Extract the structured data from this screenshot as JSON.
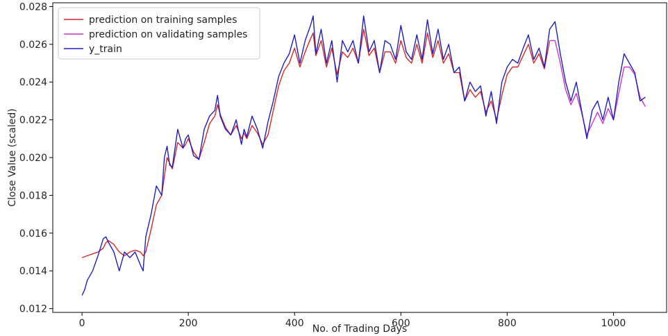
{
  "chart_data": {
    "type": "line",
    "xlabel": "No. of Trading Days",
    "ylabel": "Close Value (scaled)",
    "xlim": [
      -55,
      1100
    ],
    "ylim": [
      0.0118,
      0.0282
    ],
    "x_ticks": [
      0,
      200,
      400,
      600,
      800,
      1000
    ],
    "y_ticks": [
      0.012,
      0.014,
      0.016,
      0.018,
      0.02,
      0.022,
      0.024,
      0.026,
      0.028
    ],
    "legend_position": "top-left",
    "grid": false,
    "legend": [
      {
        "label": "prediction on training samples",
        "color": "#d62728"
      },
      {
        "label": "prediction on validating samples",
        "color": "#cc33cc"
      },
      {
        "label": "y_train",
        "color": "#1f1fbf"
      }
    ],
    "series": [
      {
        "name": "y_train",
        "color": "#1f1fbf",
        "x": [
          0,
          5,
          10,
          20,
          30,
          40,
          45,
          50,
          60,
          70,
          80,
          90,
          100,
          110,
          115,
          120,
          130,
          140,
          150,
          155,
          160,
          165,
          170,
          180,
          190,
          195,
          200,
          210,
          220,
          230,
          240,
          250,
          255,
          260,
          270,
          280,
          290,
          300,
          305,
          310,
          320,
          330,
          340,
          350,
          360,
          370,
          380,
          390,
          400,
          410,
          420,
          430,
          435,
          440,
          450,
          460,
          470,
          480,
          490,
          500,
          510,
          520,
          530,
          540,
          550,
          560,
          570,
          580,
          590,
          600,
          610,
          620,
          630,
          640,
          650,
          660,
          670,
          680,
          690,
          700,
          710,
          720,
          730,
          740,
          750,
          760,
          770,
          780,
          790,
          800,
          810,
          820,
          830,
          840,
          850,
          860,
          870,
          880,
          890,
          900,
          910,
          920,
          930,
          940,
          950,
          960,
          970,
          980,
          990,
          1000,
          1010,
          1020,
          1030,
          1040,
          1050,
          1060
        ],
        "values": [
          0.0127,
          0.013,
          0.0135,
          0.014,
          0.0148,
          0.0157,
          0.0158,
          0.0155,
          0.015,
          0.014,
          0.015,
          0.0147,
          0.015,
          0.0143,
          0.014,
          0.0158,
          0.017,
          0.0185,
          0.018,
          0.02,
          0.0206,
          0.0196,
          0.0195,
          0.0215,
          0.0205,
          0.021,
          0.0212,
          0.0201,
          0.0199,
          0.0215,
          0.0222,
          0.0225,
          0.0233,
          0.0222,
          0.0215,
          0.0212,
          0.022,
          0.0207,
          0.0215,
          0.0211,
          0.0222,
          0.0215,
          0.0205,
          0.0219,
          0.023,
          0.0243,
          0.025,
          0.0255,
          0.0265,
          0.025,
          0.0262,
          0.027,
          0.0275,
          0.0255,
          0.0268,
          0.025,
          0.0262,
          0.024,
          0.0262,
          0.0256,
          0.0262,
          0.025,
          0.0275,
          0.0256,
          0.0262,
          0.0245,
          0.0262,
          0.026,
          0.0252,
          0.027,
          0.0256,
          0.0252,
          0.0265,
          0.0252,
          0.0273,
          0.0255,
          0.0268,
          0.0252,
          0.026,
          0.0245,
          0.0248,
          0.023,
          0.024,
          0.0235,
          0.0238,
          0.0222,
          0.0235,
          0.0218,
          0.024,
          0.0248,
          0.0252,
          0.025,
          0.0258,
          0.0265,
          0.0252,
          0.0258,
          0.0248,
          0.0268,
          0.0272,
          0.0255,
          0.024,
          0.023,
          0.024,
          0.0225,
          0.021,
          0.0225,
          0.023,
          0.022,
          0.0232,
          0.022,
          0.024,
          0.0255,
          0.025,
          0.0245,
          0.023,
          0.0232
        ]
      },
      {
        "name": "prediction on training samples",
        "color": "#d62728",
        "x": [
          0,
          10,
          20,
          30,
          40,
          45,
          50,
          60,
          70,
          80,
          90,
          100,
          110,
          115,
          120,
          130,
          140,
          150,
          155,
          160,
          165,
          170,
          180,
          190,
          195,
          200,
          210,
          220,
          230,
          240,
          250,
          255,
          260,
          270,
          280,
          290,
          300,
          305,
          310,
          320,
          330,
          340,
          350,
          360,
          370,
          380,
          390,
          400,
          410,
          420,
          430,
          435,
          440,
          450,
          460,
          470,
          480,
          490,
          500,
          510,
          520,
          530,
          540,
          550,
          560,
          570,
          580,
          590,
          600,
          610,
          620,
          630,
          640,
          650,
          660,
          670,
          680,
          690,
          700,
          710,
          720,
          730,
          740,
          750,
          760,
          770,
          780,
          790,
          800,
          810,
          820,
          830,
          840,
          850,
          860,
          870,
          880
        ],
        "values": [
          0.0147,
          0.0148,
          0.0149,
          0.015,
          0.0152,
          0.0155,
          0.0156,
          0.0154,
          0.015,
          0.0148,
          0.015,
          0.0151,
          0.015,
          0.0148,
          0.015,
          0.0162,
          0.0175,
          0.018,
          0.019,
          0.02,
          0.0197,
          0.0194,
          0.0208,
          0.0205,
          0.0207,
          0.021,
          0.0203,
          0.0199,
          0.0208,
          0.0218,
          0.0222,
          0.0228,
          0.0223,
          0.0216,
          0.0212,
          0.0217,
          0.021,
          0.0213,
          0.021,
          0.0217,
          0.0213,
          0.0207,
          0.0212,
          0.0225,
          0.0238,
          0.0246,
          0.025,
          0.0258,
          0.0248,
          0.0256,
          0.0263,
          0.0266,
          0.0254,
          0.0262,
          0.0248,
          0.0258,
          0.0244,
          0.0256,
          0.0253,
          0.0258,
          0.025,
          0.0268,
          0.0254,
          0.0258,
          0.0245,
          0.0256,
          0.0256,
          0.025,
          0.0262,
          0.0253,
          0.025,
          0.026,
          0.025,
          0.0266,
          0.0253,
          0.0262,
          0.025,
          0.0255,
          0.0245,
          0.0245,
          0.023,
          0.0236,
          0.0232,
          0.0235,
          0.0224,
          0.023,
          0.022,
          0.0233,
          0.0244,
          0.0248,
          0.0248,
          0.0254,
          0.026,
          0.025,
          0.0255,
          0.0247,
          0.0262
        ]
      },
      {
        "name": "prediction on validating samples",
        "color": "#cc33cc",
        "x": [
          880,
          890,
          900,
          910,
          920,
          930,
          940,
          950,
          960,
          970,
          980,
          990,
          1000,
          1010,
          1020,
          1030,
          1040,
          1050,
          1060
        ],
        "values": [
          0.0262,
          0.0262,
          0.025,
          0.0236,
          0.0228,
          0.0234,
          0.0224,
          0.0212,
          0.0218,
          0.0224,
          0.0218,
          0.0226,
          0.022,
          0.0234,
          0.0248,
          0.0248,
          0.0244,
          0.0232,
          0.0227
        ]
      }
    ]
  }
}
